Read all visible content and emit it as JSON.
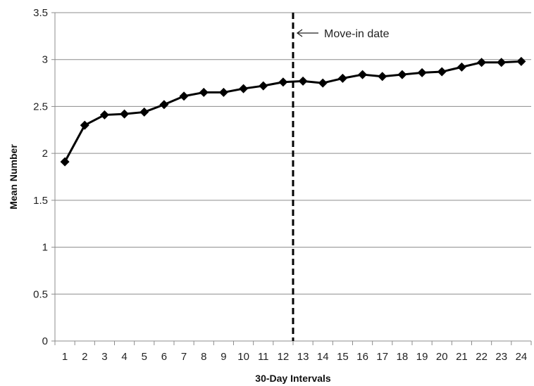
{
  "chart_data": {
    "type": "line",
    "title": "",
    "xlabel": "30-Day Intervals",
    "ylabel": "Mean Number",
    "categories": [
      "1",
      "2",
      "3",
      "4",
      "5",
      "6",
      "7",
      "8",
      "9",
      "10",
      "11",
      "12",
      "13",
      "14",
      "15",
      "16",
      "17",
      "18",
      "19",
      "20",
      "21",
      "22",
      "23",
      "24"
    ],
    "series": [
      {
        "values": [
          1.91,
          2.3,
          2.41,
          2.42,
          2.44,
          2.52,
          2.61,
          2.65,
          2.65,
          2.69,
          2.72,
          2.76,
          2.77,
          2.75,
          2.8,
          2.84,
          2.82,
          2.84,
          2.86,
          2.87,
          2.92,
          2.97,
          2.97,
          2.98
        ],
        "color": "#000000",
        "marker": "diamond"
      }
    ],
    "ylim": [
      0,
      3.5
    ],
    "yticks": [
      "0",
      "0.5",
      "1",
      "1.5",
      "2",
      "2.5",
      "3",
      "3.5"
    ],
    "grid": true,
    "legend": "none",
    "reference_line": {
      "x": 12.5,
      "style": "dashed",
      "label": "Move-in date"
    }
  }
}
